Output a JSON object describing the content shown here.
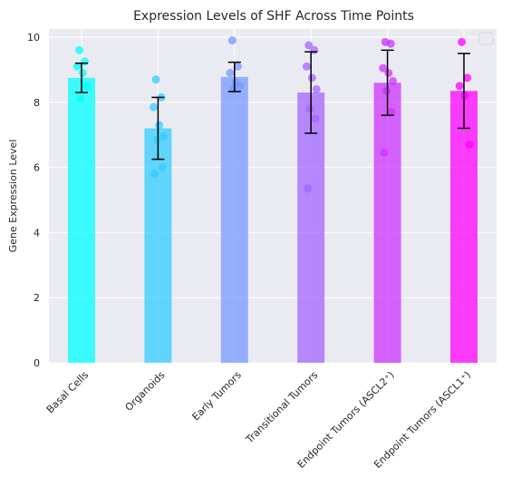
{
  "chart_data": {
    "type": "bar",
    "title": "Expression Levels of SHF Across Time Points",
    "xlabel": "",
    "ylabel": "Gene Expression Level",
    "ylim": [
      0,
      10.25
    ],
    "yticks": [
      0,
      2,
      4,
      6,
      8,
      10
    ],
    "grid": true,
    "legend": "top-right (empty)",
    "categories": [
      "Basal Cells",
      "Organoids",
      "Early Tumors",
      "Transitional Tumors",
      "Endpoint Tumors (ASCL2⁺)",
      "Endpoint Tumors (ASCL1⁺)"
    ],
    "values": [
      8.75,
      7.2,
      8.78,
      8.3,
      8.6,
      8.35
    ],
    "error": [
      0.45,
      0.95,
      0.45,
      1.25,
      1.0,
      1.15
    ],
    "colors": [
      "#00FFFF",
      "#33CCFF",
      "#7799FF",
      "#A366FF",
      "#CC33FF",
      "#FF00FF"
    ],
    "points": [
      [
        9.6,
        9.25,
        9.1,
        8.9,
        8.5,
        8.1
      ],
      [
        8.7,
        8.15,
        7.85,
        7.3,
        6.95,
        6.85,
        6.0,
        5.8
      ],
      [
        9.9,
        9.1,
        8.9,
        8.6,
        8.5,
        8.4
      ],
      [
        9.75,
        9.6,
        9.1,
        8.75,
        8.4,
        7.8,
        7.5,
        5.35
      ],
      [
        9.85,
        9.8,
        9.05,
        8.9,
        8.65,
        8.35,
        7.7,
        6.45
      ],
      [
        9.85,
        8.75,
        8.5,
        8.2,
        6.7
      ]
    ]
  }
}
